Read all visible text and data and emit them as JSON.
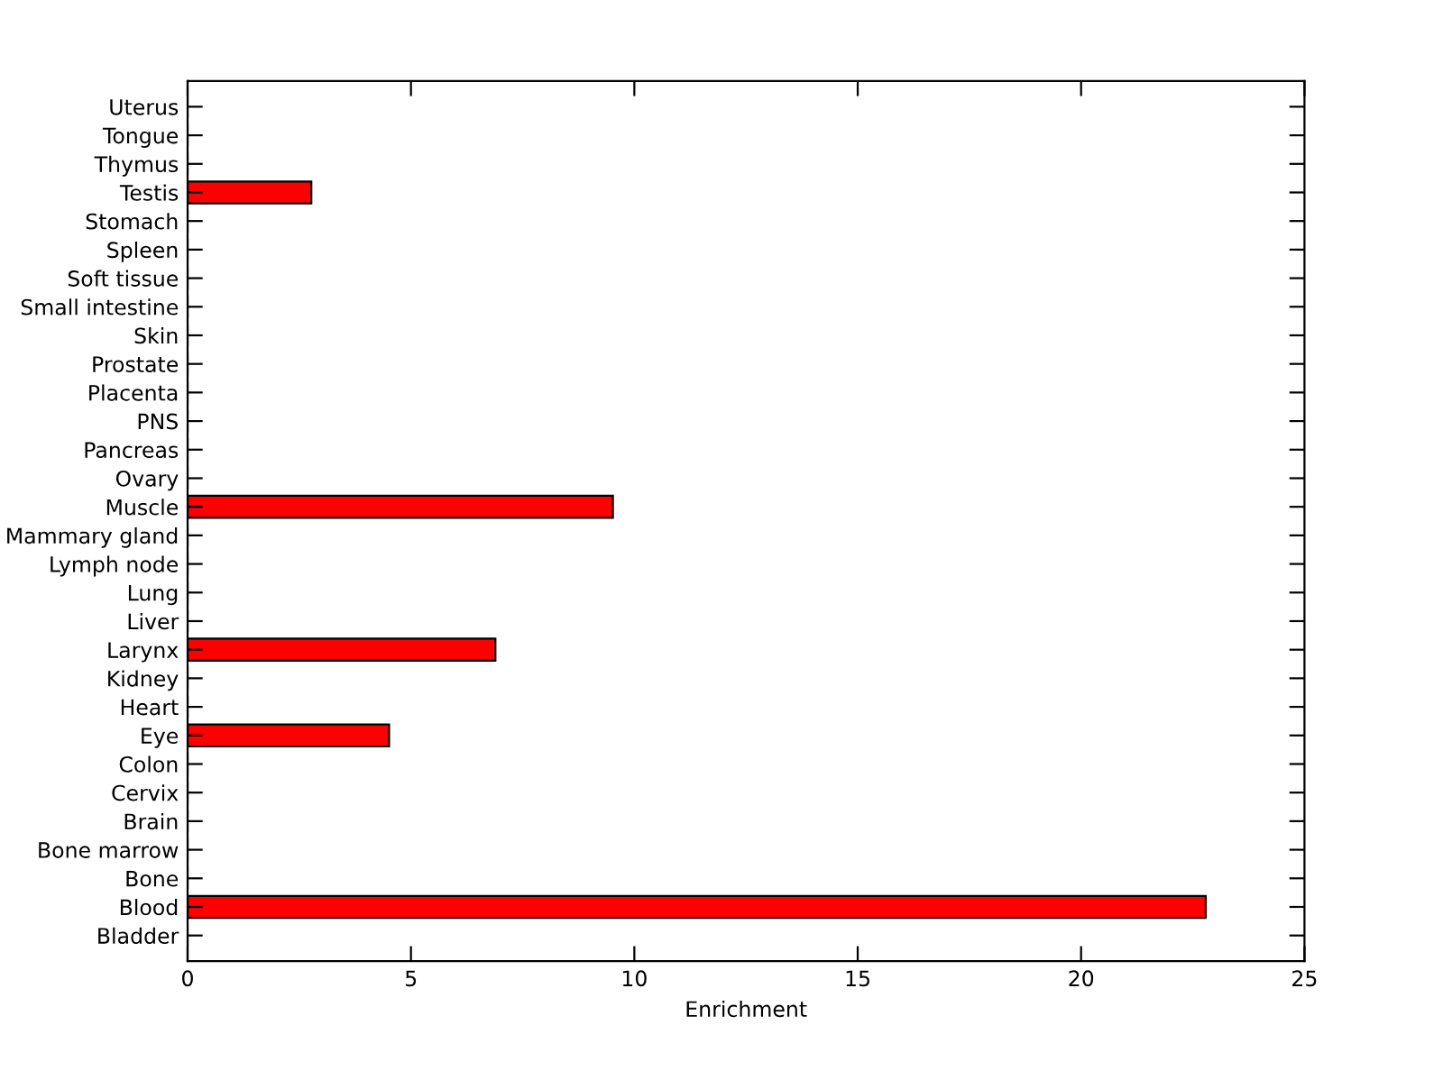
{
  "chart_data": {
    "type": "bar",
    "orientation": "horizontal",
    "xlabel": "Enrichment",
    "categories": [
      "Uterus",
      "Tongue",
      "Thymus",
      "Testis",
      "Stomach",
      "Spleen",
      "Soft tissue",
      "Small intestine",
      "Skin",
      "Prostate",
      "Placenta",
      "PNS",
      "Pancreas",
      "Ovary",
      "Muscle",
      "Mammary gland",
      "Lymph node",
      "Lung",
      "Liver",
      "Larynx",
      "Kidney",
      "Heart",
      "Eye",
      "Colon",
      "Cervix",
      "Brain",
      "Bone marrow",
      "Bone",
      "Blood",
      "Bladder"
    ],
    "values": [
      0,
      0,
      0,
      2.77,
      0,
      0,
      0,
      0,
      0,
      0,
      0,
      0,
      0,
      0,
      9.52,
      0,
      0,
      0,
      0,
      6.89,
      0,
      0,
      4.51,
      0,
      0,
      0,
      0,
      0,
      22.79,
      0
    ],
    "color": "#ff0000",
    "xlim": [
      0,
      25
    ],
    "xticks": [
      0,
      5,
      10,
      15,
      20,
      25
    ],
    "grid": false
  }
}
